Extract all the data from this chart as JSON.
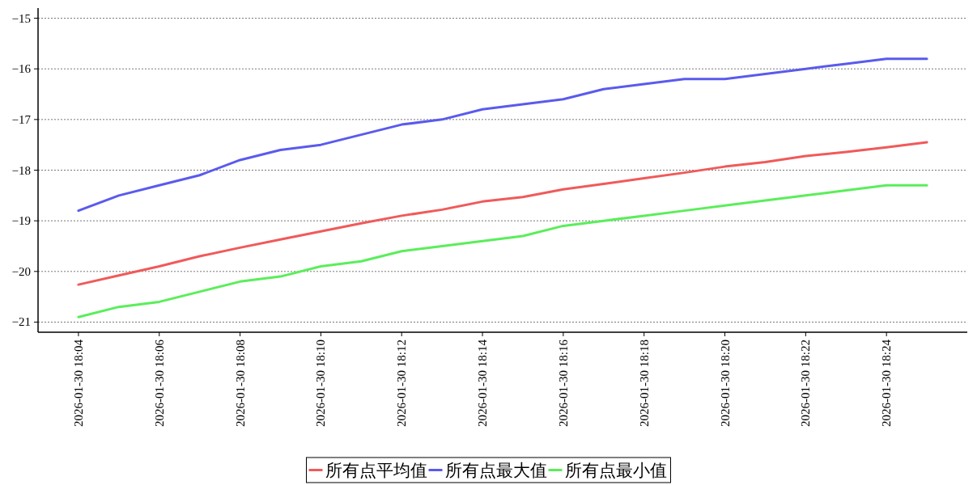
{
  "chart_data": {
    "type": "line",
    "x": [
      "2026-01-30T18:04",
      "2026-01-30T18:05",
      "2026-01-30T18:06",
      "2026-01-30T18:07",
      "2026-01-30T18:08",
      "2026-01-30T18:09",
      "2026-01-30T18:10",
      "2026-01-30T18:11",
      "2026-01-30T18:12",
      "2026-01-30T18:13",
      "2026-01-30T18:14",
      "2026-01-30T18:15",
      "2026-01-30T18:16",
      "2026-01-30T18:17",
      "2026-01-30T18:18",
      "2026-01-30T18:19",
      "2026-01-30T18:20",
      "2026-01-30T18:21",
      "2026-01-30T18:22",
      "2026-01-30T18:23",
      "2026-01-30T18:24",
      "2026-01-30T18:25"
    ],
    "series": [
      {
        "name": "所有点平均值",
        "color": "#f05a5a",
        "values": [
          -20.26,
          -20.08,
          -19.9,
          -19.7,
          -19.53,
          -19.37,
          -19.21,
          -19.05,
          -18.9,
          -18.78,
          -18.62,
          -18.53,
          -18.38,
          -18.27,
          -18.16,
          -18.05,
          -17.93,
          -17.84,
          -17.72,
          -17.64,
          -17.55,
          -17.45
        ]
      },
      {
        "name": "所有点最大值",
        "color": "#5a5aee",
        "values": [
          -18.8,
          -18.5,
          -18.3,
          -18.1,
          -17.8,
          -17.6,
          -17.5,
          -17.3,
          -17.1,
          -17.0,
          -16.8,
          -16.7,
          -16.6,
          -16.4,
          -16.3,
          -16.2,
          -16.2,
          -16.1,
          -16.0,
          -15.9,
          -15.8,
          -15.8
        ]
      },
      {
        "name": "所有点最小值",
        "color": "#5aee5a",
        "values": [
          -20.9,
          -20.7,
          -20.6,
          -20.4,
          -20.2,
          -20.1,
          -19.9,
          -19.8,
          -19.6,
          -19.5,
          -19.4,
          -19.3,
          -19.1,
          -19.0,
          -18.9,
          -18.8,
          -18.7,
          -18.6,
          -18.5,
          -18.4,
          -18.3,
          -18.3
        ]
      }
    ],
    "xlim": [
      "2026-01-30T18:03",
      "2026-01-30T18:26"
    ],
    "xticks": [
      {
        "value": "2026-01-30T18:04",
        "label": "2026-01-30 18:04"
      },
      {
        "value": "2026-01-30T18:06",
        "label": "2026-01-30 18:06"
      },
      {
        "value": "2026-01-30T18:08",
        "label": "2026-01-30 18:08"
      },
      {
        "value": "2026-01-30T18:10",
        "label": "2026-01-30 18:10"
      },
      {
        "value": "2026-01-30T18:12",
        "label": "2026-01-30 18:12"
      },
      {
        "value": "2026-01-30T18:14",
        "label": "2026-01-30 18:14"
      },
      {
        "value": "2026-01-30T18:16",
        "label": "2026-01-30 18:16"
      },
      {
        "value": "2026-01-30T18:18",
        "label": "2026-01-30 18:18"
      },
      {
        "value": "2026-01-30T18:20",
        "label": "2026-01-30 18:20"
      },
      {
        "value": "2026-01-30T18:22",
        "label": "2026-01-30 18:22"
      },
      {
        "value": "2026-01-30T18:24",
        "label": "2026-01-30 18:24"
      }
    ],
    "ylim": [
      -21.2,
      -14.8
    ],
    "yticks": [
      -21,
      -20,
      -19,
      -18,
      -17,
      -16,
      -15
    ],
    "grid": "y",
    "legend": "bottom",
    "marker": "none",
    "line_style": "solid"
  }
}
